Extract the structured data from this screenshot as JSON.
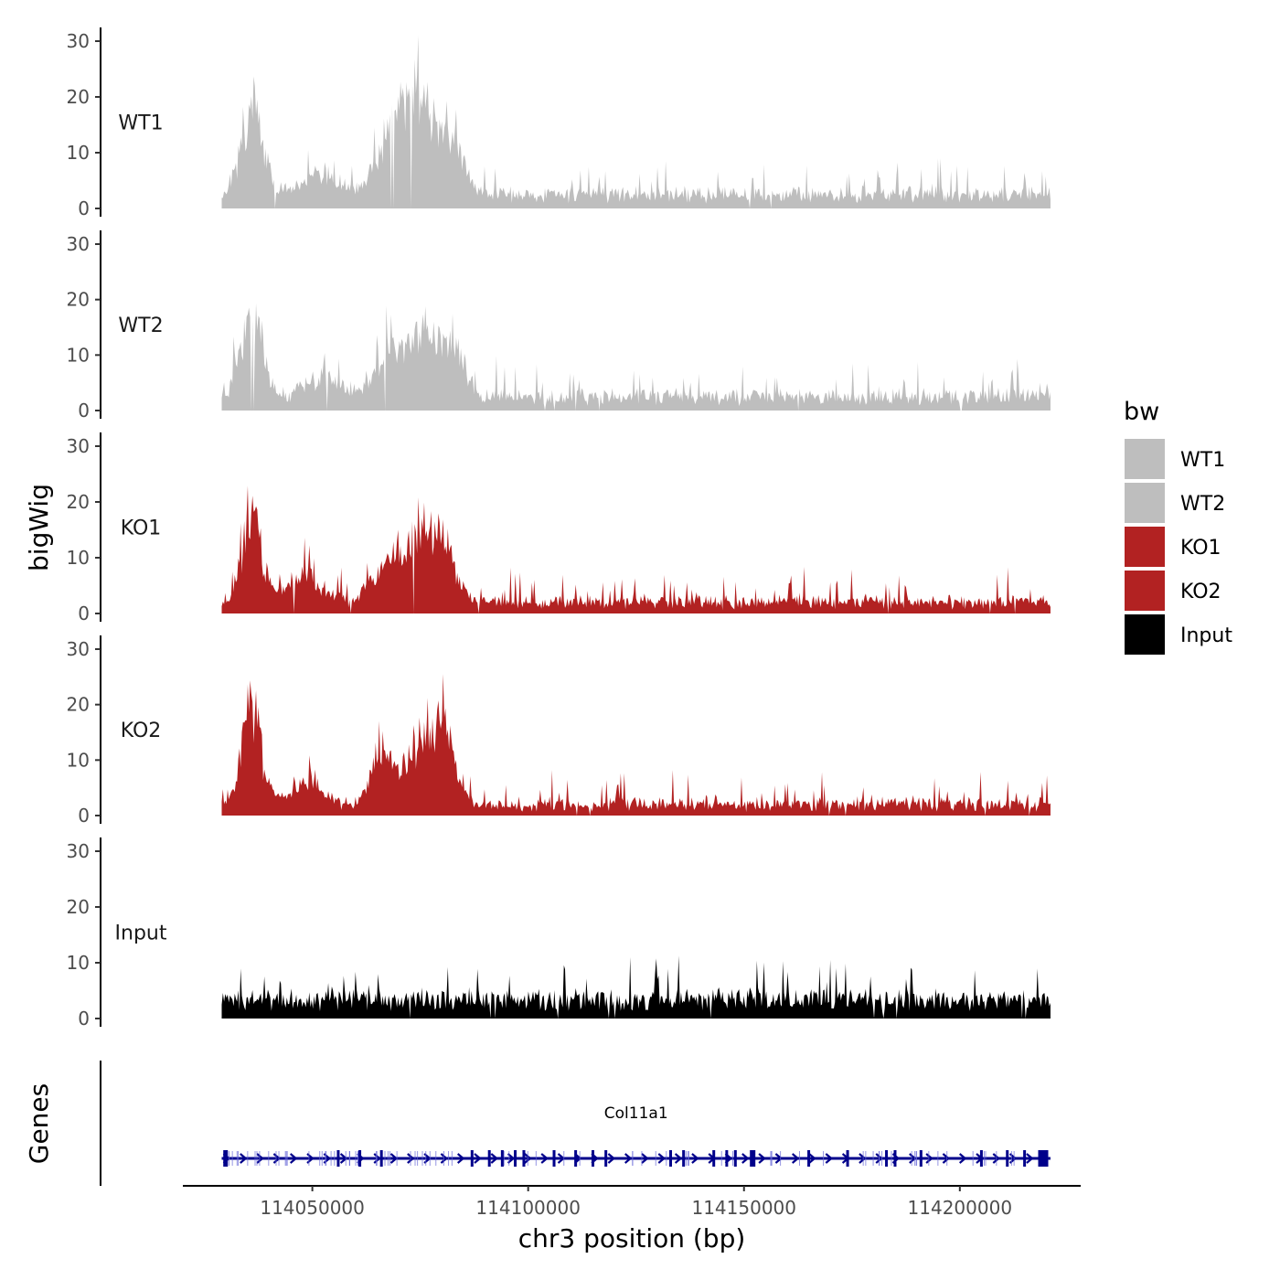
{
  "chart_data": {
    "type": "area",
    "chromosome": "chr3",
    "xlabel": "chr3 position (bp)",
    "ylabel": "bigWig",
    "genes_label": "Genes",
    "xlim": [
      114020000,
      114228000
    ],
    "data_range": [
      114029000,
      114221000
    ],
    "x_ticks": [
      114050000,
      114100000,
      114150000,
      114200000
    ],
    "x_tick_labels": [
      "114050000",
      "114100000",
      "114150000",
      "114200000"
    ],
    "ylim": [
      0,
      31
    ],
    "y_ticks": [
      0,
      10,
      20,
      30
    ],
    "y_tick_labels": [
      "0",
      "10",
      "20",
      "30"
    ],
    "legend": {
      "title": "bw",
      "entries": [
        {
          "label": "WT1",
          "color": "#bebebe"
        },
        {
          "label": "WT2",
          "color": "#bebebe"
        },
        {
          "label": "KO1",
          "color": "#b22222"
        },
        {
          "label": "KO2",
          "color": "#b22222"
        },
        {
          "label": "Input",
          "color": "#000000"
        }
      ]
    },
    "series": [
      {
        "name": "WT1",
        "color": "#bebebe",
        "baseline": 2.5,
        "noise": 3.0,
        "seed": 11,
        "peaks": [
          {
            "x": 114036000,
            "width": 2500,
            "height": 16
          },
          {
            "x": 114052000,
            "width": 4000,
            "height": 4
          },
          {
            "x": 114068000,
            "width": 3500,
            "height": 9
          },
          {
            "x": 114075000,
            "width": 4000,
            "height": 17
          },
          {
            "x": 114083000,
            "width": 2500,
            "height": 8
          }
        ]
      },
      {
        "name": "WT2",
        "color": "#bebebe",
        "baseline": 2.5,
        "noise": 3.0,
        "seed": 23,
        "peaks": [
          {
            "x": 114036000,
            "width": 2500,
            "height": 15
          },
          {
            "x": 114052000,
            "width": 4000,
            "height": 4
          },
          {
            "x": 114068000,
            "width": 3500,
            "height": 8
          },
          {
            "x": 114076000,
            "width": 3500,
            "height": 12
          },
          {
            "x": 114083000,
            "width": 2500,
            "height": 7
          }
        ]
      },
      {
        "name": "KO1",
        "color": "#b22222",
        "baseline": 2.0,
        "noise": 2.8,
        "seed": 37,
        "peaks": [
          {
            "x": 114036000,
            "width": 2200,
            "height": 16
          },
          {
            "x": 114048000,
            "width": 4000,
            "height": 5
          },
          {
            "x": 114067000,
            "width": 3500,
            "height": 6
          },
          {
            "x": 114075000,
            "width": 3500,
            "height": 14
          },
          {
            "x": 114081000,
            "width": 2500,
            "height": 8
          }
        ]
      },
      {
        "name": "KO2",
        "color": "#b22222",
        "baseline": 2.0,
        "noise": 2.8,
        "seed": 53,
        "peaks": [
          {
            "x": 114036000,
            "width": 2200,
            "height": 18
          },
          {
            "x": 114048000,
            "width": 4000,
            "height": 4
          },
          {
            "x": 114066000,
            "width": 2500,
            "height": 9
          },
          {
            "x": 114076000,
            "width": 4000,
            "height": 12
          },
          {
            "x": 114081000,
            "width": 2500,
            "height": 8
          }
        ]
      },
      {
        "name": "Input",
        "color": "#000000",
        "baseline": 3.5,
        "noise": 3.5,
        "seed": 71,
        "peaks": []
      }
    ],
    "gene": {
      "name": "Col11a1",
      "strand": "+",
      "start": 114029000,
      "end": 114221000,
      "color": "#00008b",
      "exons": [
        114030000,
        114056000,
        114061000,
        114066000,
        114087000,
        114091000,
        114094000,
        114097000,
        114099000,
        114106000,
        114111000,
        114115000,
        114118000,
        114133000,
        114136000,
        114143000,
        114146000,
        114148000,
        114152000,
        114165000,
        114174000,
        114183000,
        114185000,
        114191000,
        114205000,
        114211000,
        114215000,
        114219000,
        114220000
      ]
    }
  }
}
